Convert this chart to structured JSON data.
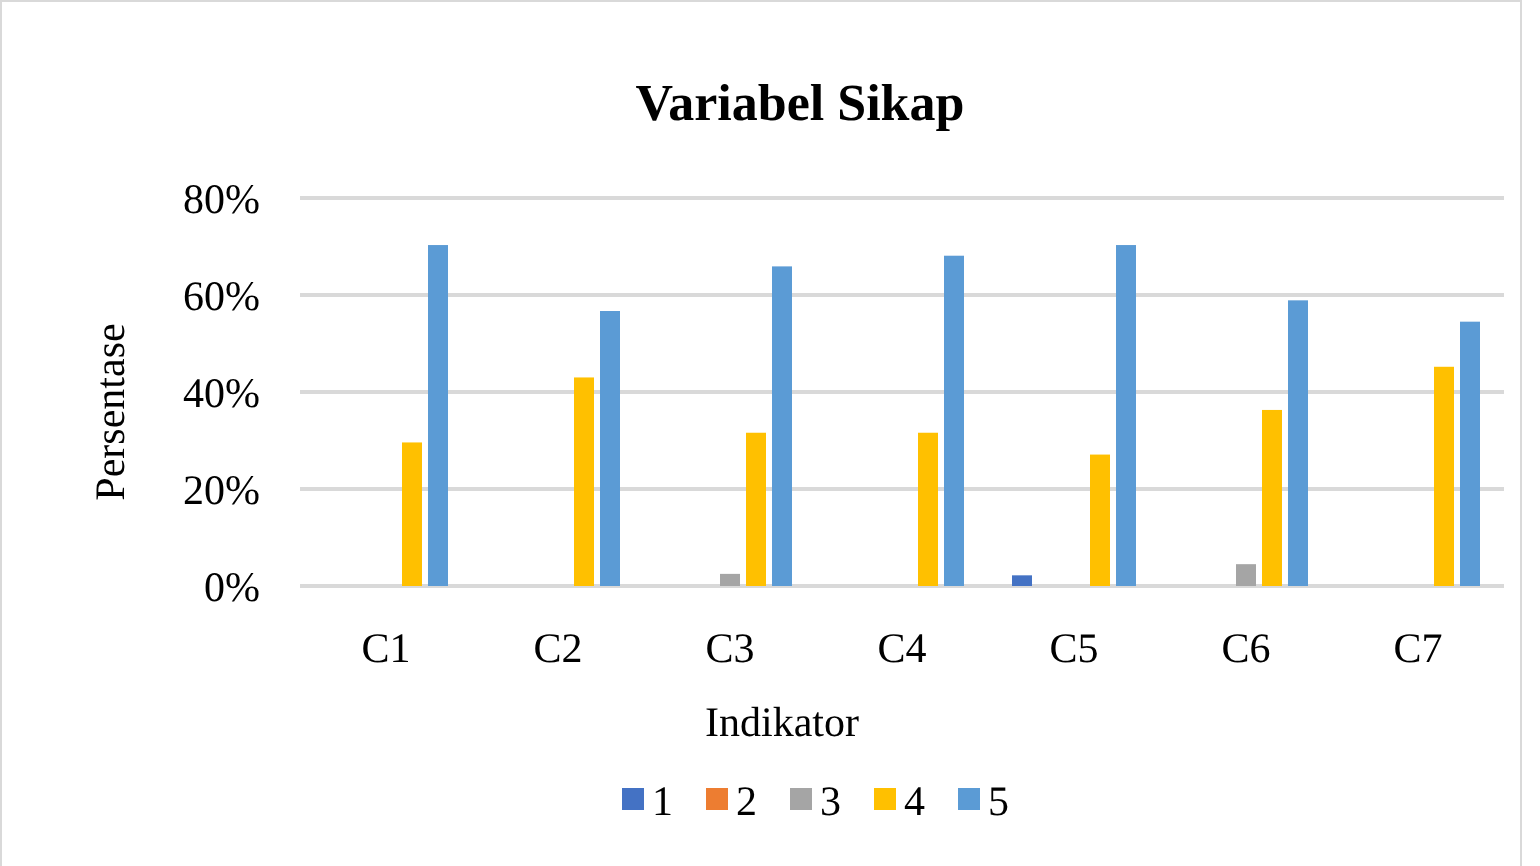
{
  "chart_data": {
    "type": "bar",
    "title": "Variabel Sikap",
    "xlabel": "Indikator",
    "ylabel": "Persentase",
    "categories": [
      "C1",
      "C2",
      "C3",
      "C4",
      "C5",
      "C6",
      "C7"
    ],
    "series": [
      {
        "name": "1",
        "color": "#4472c4",
        "values": [
          0,
          0,
          0,
          0,
          2.2,
          0,
          0
        ]
      },
      {
        "name": "2",
        "color": "#ed7d31",
        "values": [
          0,
          0,
          0,
          0,
          0,
          0,
          0
        ]
      },
      {
        "name": "3",
        "color": "#a5a5a5",
        "values": [
          0,
          0,
          2.5,
          0,
          0,
          4.5,
          0
        ]
      },
      {
        "name": "4",
        "color": "#ffc000",
        "values": [
          29.6,
          43,
          31.6,
          31.6,
          27.1,
          36.3,
          45.2
        ]
      },
      {
        "name": "5",
        "color": "#5b9bd5",
        "values": [
          70.3,
          56.7,
          65.9,
          68.1,
          70.3,
          58.9,
          54.5
        ]
      }
    ],
    "ylim": [
      0,
      80
    ],
    "yticks": [
      {
        "value": 0,
        "label": "0%"
      },
      {
        "value": 20,
        "label": "20%"
      },
      {
        "value": 40,
        "label": "40%"
      },
      {
        "value": 60,
        "label": "60%"
      },
      {
        "value": 80,
        "label": "80%"
      }
    ],
    "grid": "y",
    "legend": "bottom"
  }
}
